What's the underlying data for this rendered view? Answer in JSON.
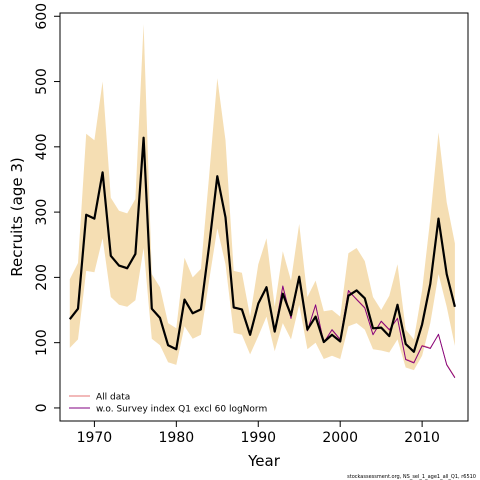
{
  "chart_data": {
    "type": "line",
    "title": "",
    "xlabel": "Year",
    "ylabel": "Recruits (age 3)",
    "xlim": [
      1965.8,
      2015.6
    ],
    "ylim": [
      -20,
      605
    ],
    "x_ticks": [
      1970,
      1980,
      1990,
      2000,
      2010
    ],
    "y_ticks": [
      0,
      100,
      200,
      300,
      400,
      500,
      600
    ],
    "grid": false,
    "legend_position": "bottom-left",
    "credit": "stockassessment.org, NS_sel_1_age1_all_Q1, r6510",
    "band_color": "#f5deb3",
    "years": [
      1967,
      1968,
      1969,
      1970,
      1971,
      1972,
      1973,
      1974,
      1975,
      1976,
      1977,
      1978,
      1979,
      1980,
      1981,
      1982,
      1983,
      1984,
      1985,
      1986,
      1987,
      1988,
      1989,
      1990,
      1991,
      1992,
      1993,
      1994,
      1995,
      1996,
      1997,
      1998,
      1999,
      2000,
      2001,
      2002,
      2003,
      2004,
      2005,
      2006,
      2007,
      2008,
      2009,
      2010,
      2011,
      2012,
      2013,
      2014
    ],
    "band": {
      "upper": [
        197,
        222,
        420,
        410,
        500,
        322,
        302,
        298,
        320,
        588,
        205,
        185,
        130,
        122,
        230,
        200,
        213,
        355,
        505,
        410,
        210,
        207,
        140,
        220,
        260,
        155,
        240,
        195,
        282,
        170,
        195,
        148,
        150,
        140,
        237,
        245,
        225,
        170,
        150,
        172,
        220,
        120,
        105,
        180,
        290,
        422,
        315,
        252
      ],
      "lower": [
        92,
        105,
        210,
        208,
        260,
        170,
        158,
        155,
        165,
        245,
        106,
        96,
        70,
        66,
        125,
        106,
        112,
        195,
        275,
        220,
        115,
        112,
        82,
        110,
        140,
        87,
        130,
        105,
        158,
        90,
        100,
        75,
        80,
        75,
        125,
        130,
        120,
        90,
        88,
        85,
        105,
        62,
        58,
        80,
        130,
        205,
        155,
        95
      ]
    },
    "series": [
      {
        "name": "",
        "color": "#000000",
        "values": [
          136,
          152,
          296,
          290,
          361,
          233,
          218,
          214,
          236,
          414,
          152,
          138,
          96,
          90,
          166,
          145,
          151,
          248,
          355,
          292,
          154,
          151,
          112,
          160,
          185,
          117,
          175,
          142,
          201,
          120,
          140,
          101,
          112,
          102,
          172,
          180,
          168,
          122,
          123,
          110,
          158,
          98,
          86,
          128,
          190,
          290,
          205,
          155
        ]
      },
      {
        "name": "All data",
        "color": "#e57373",
        "values": [
          136,
          151,
          295,
          290,
          360,
          232,
          218,
          213,
          235,
          412,
          151,
          137,
          96,
          90,
          165,
          145,
          151,
          247,
          354,
          291,
          153,
          151,
          112,
          160,
          184,
          117,
          185,
          138,
          199,
          119,
          157,
          101,
          119,
          104,
          178,
          167,
          154,
          113,
          132,
          119,
          138,
          75,
          70,
          96,
          92,
          112,
          67,
          47
        ]
      },
      {
        "name": "w.o. Survey index Q1 excl 60 logNorm",
        "color": "#800080",
        "values": [
          136,
          151,
          295,
          290,
          360,
          232,
          218,
          213,
          235,
          412,
          151,
          137,
          96,
          90,
          165,
          145,
          151,
          247,
          354,
          291,
          153,
          151,
          112,
          160,
          184,
          117,
          187,
          137,
          199,
          118,
          158,
          100,
          120,
          105,
          180,
          166,
          153,
          112,
          133,
          120,
          137,
          74,
          69,
          95,
          91,
          113,
          66,
          46
        ]
      }
    ]
  }
}
